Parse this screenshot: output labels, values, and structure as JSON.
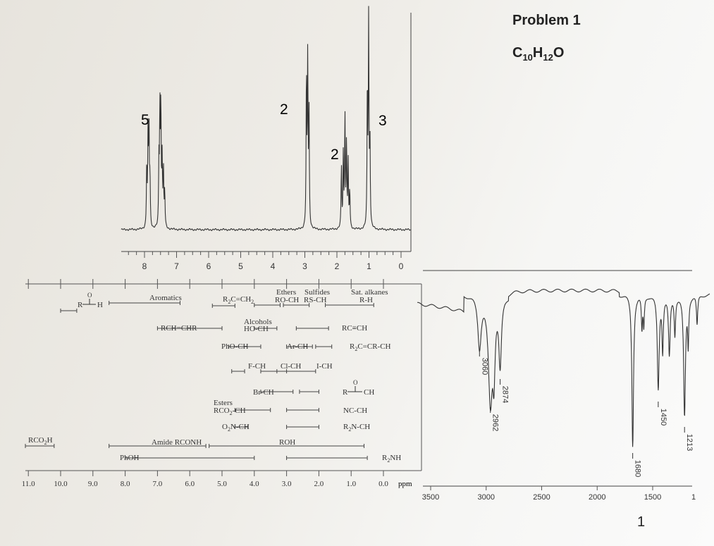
{
  "header": {
    "problem": "Problem 1",
    "formula_base": "C",
    "formula_c": "10",
    "formula_h_base": "H",
    "formula_h": "12",
    "formula_o": "O",
    "page_number": "1"
  },
  "chart_data": [
    {
      "type": "line",
      "subtype": "1H NMR spectrum",
      "x_axis_ticks": [
        "8",
        "7",
        "6",
        "5",
        "4",
        "3",
        "2",
        "1",
        "0"
      ],
      "xlim": [
        8.8,
        -0.1
      ],
      "peaks": [
        {
          "shift": 7.9,
          "integration": "5"
        },
        {
          "shift": 7.5,
          "integration": ""
        },
        {
          "shift": 2.9,
          "integration": "2"
        },
        {
          "shift": 1.75,
          "integration": "2"
        },
        {
          "shift": 1.0,
          "integration": "3"
        }
      ],
      "colors": {
        "line": "#333333"
      }
    },
    {
      "type": "table",
      "subtype": "1H chemical shift correlation chart",
      "axis_ticks": [
        "11.0",
        "10.0",
        "9.0",
        "8.0",
        "7.0",
        "6.0",
        "5.0",
        "4.0",
        "3.0",
        "2.0",
        "1.0",
        "0.0"
      ],
      "axis_unit": "ppm",
      "labels": [
        {
          "text": "R–C(=O)–H",
          "range": [
            10.0,
            9.5
          ]
        },
        {
          "text": "Aromatics",
          "range": [
            8.5,
            6.3
          ]
        },
        {
          "text": "R₂C=CH₂",
          "range": [
            5.3,
            4.6
          ]
        },
        {
          "text": "Ethers RO-CH",
          "range": [
            4.0,
            3.2
          ]
        },
        {
          "text": "Sulfides RS-CH",
          "range": [
            3.1,
            2.3
          ]
        },
        {
          "text": "Sat. alkanes R-H",
          "range": [
            1.8,
            0.3
          ]
        },
        {
          "text": "RCH=CHR",
          "range": [
            7.0,
            5.0
          ]
        },
        {
          "text": "Alcohols HO-CH",
          "range": [
            4.0,
            3.3
          ]
        },
        {
          "text": "RC≡CH",
          "range": [
            2.7,
            1.7
          ]
        },
        {
          "text": "PhO-CH",
          "range": [
            4.8,
            3.8
          ]
        },
        {
          "text": "Ar-CH",
          "range": [
            3.0,
            2.2
          ]
        },
        {
          "text": "R₂C=CR-CH",
          "range": [
            2.1,
            1.6
          ]
        },
        {
          "text": "F-CH",
          "range": [
            4.7,
            4.3
          ]
        },
        {
          "text": "Cl-CH",
          "range": [
            3.8,
            3.0
          ]
        },
        {
          "text": "I-CH",
          "range": [
            3.3,
            2.1
          ]
        },
        {
          "text": "Br-CH",
          "range": [
            3.8,
            2.8
          ]
        },
        {
          "text": "R–C(=O)–CH",
          "range": [
            2.6,
            2.0
          ]
        },
        {
          "text": "Esters RCO₂-CH",
          "range": [
            4.6,
            3.5
          ]
        },
        {
          "text": "NC-CH",
          "range": [
            3.0,
            2.0
          ]
        },
        {
          "text": "O₂N-CH",
          "range": [
            4.6,
            4.2
          ]
        },
        {
          "text": "R₂N-CH",
          "range": [
            3.0,
            2.0
          ]
        },
        {
          "text": "RCO₂H",
          "range": [
            12.0,
            10.2
          ]
        },
        {
          "text": "Amide RCONH",
          "range": [
            8.5,
            5.5
          ]
        },
        {
          "text": "ROH",
          "range": [
            5.4,
            0.6
          ]
        },
        {
          "text": "PhOH",
          "range": [
            8.0,
            4.0
          ]
        },
        {
          "text": "R₂NH",
          "range": [
            3.0,
            0.5
          ]
        }
      ],
      "strings": {
        "aromatics": "Aromatics",
        "r2c": "R",
        "c_ch2": "C=CH",
        "two": "2",
        "ethers": "Ethers",
        "sulfides": "Sulfides",
        "sat_alkanes": "Sat. alkanes",
        "ro_ch": "RO-CH",
        "rs_ch": "RS-CH",
        "r_h": "R-H",
        "rch_chr": "RCH=CHR",
        "alcohols": "Alcohols",
        "ho_ch": "HO-CH",
        "rc_ch": "RC≡CH",
        "pho_ch": "PhO-CH",
        "ar_ch": "Ar-CH",
        "r2c_cr_ch": "C=CR-CH",
        "f_ch": "F-CH",
        "cl_ch": "Cl-CH",
        "i_ch": "I-CH",
        "br_ch": "Br-CH",
        "ch": "CH",
        "r": "R",
        "h": "H",
        "o": "O",
        "esters": "Esters",
        "rco2_ch": "RCO",
        "ch_tail": "-CH",
        "nc_ch": "NC-CH",
        "o2n_ch": "O",
        "n_ch": "N-CH",
        "r2n_ch": "N-CH",
        "rco2h": "RCO",
        "h_tail": "H",
        "amide": "Amide RCONH",
        "roh": "ROH",
        "phoh": "PhOH",
        "r2nh": "NH",
        "ppm": "ppm"
      }
    },
    {
      "type": "line",
      "subtype": "IR spectrum",
      "x_axis_ticks": [
        "3500",
        "3000",
        "2500",
        "2000",
        "1500",
        "1"
      ],
      "xlim": [
        3700,
        1000
      ],
      "peak_labels": [
        "3060",
        "2962",
        "2874",
        "1680",
        "1450",
        "1213"
      ],
      "colors": {
        "line": "#333333"
      }
    }
  ]
}
